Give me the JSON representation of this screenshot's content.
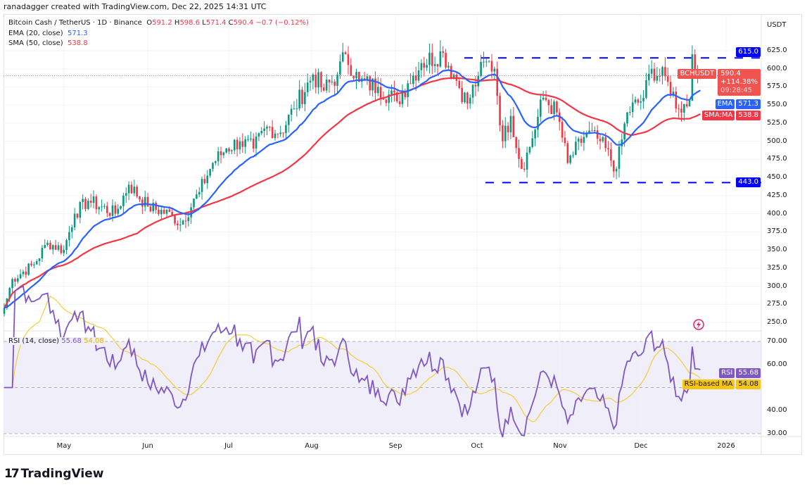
{
  "credit": "ranadagger created with TradingView.com, Dec 22, 2025 14:31 UTC",
  "legend": {
    "symbol": "Bitcoin Cash / TetherUS · 1D · Binance",
    "o_label": "O",
    "o": "591.2",
    "h_label": "H",
    "h": "598.6",
    "l_label": "L",
    "l": "571.4",
    "c_label": "C",
    "c": "590.4",
    "change": "−0.7 (−0.12%)",
    "ema_label": "EMA (20, close)",
    "ema": "571.3",
    "sma_label": "SMA (50, close)",
    "sma": "538.8",
    "rsi_label": "RSI (14, close)",
    "rsi": "55.68",
    "rsi_ma": "54.08"
  },
  "price_axis": {
    "currency": "USDT",
    "ticks": [
      "625.0",
      "600.0",
      "575.0",
      "550.0",
      "525.0",
      "500.0",
      "475.0",
      "450.0",
      "425.0",
      "400.0",
      "375.0",
      "350.0",
      "325.0",
      "300.0",
      "275.0",
      "250.0"
    ]
  },
  "rsi_axis": {
    "ticks": [
      "70.00",
      "60.00",
      "40.00",
      "30.00"
    ]
  },
  "tags": {
    "resistance": "615.0",
    "support": "443.0",
    "symbol": "BCHUSDT",
    "last": "590.4",
    "pct": "+114.38%",
    "countdown": "09:28:45",
    "ema_label": "EMA",
    "ema": "571.3",
    "sma_label": "SMA:MA",
    "sma": "538.8",
    "rsi_label": "RSI",
    "rsi": "55.68",
    "rsi_ma_label": "RSI-based MA",
    "rsi_ma": "54.08"
  },
  "time_axis": [
    "May",
    "Jun",
    "Jul",
    "Aug",
    "Sep",
    "Oct",
    "Nov",
    "Dec",
    "2026"
  ],
  "logo": "TradingView",
  "colors": {
    "up": "#089981",
    "down": "#f23645",
    "ema": "#2962ff",
    "sma": "#f23645",
    "rsi": "#7e57c2",
    "rsi_ma": "#f5c518",
    "level": "#0000ff"
  },
  "chart_data": {
    "type": "candlestick",
    "title": "Bitcoin Cash / TetherUS · 1D · Binance",
    "start": "2025-04-09",
    "end": "2025-12-22",
    "ylim": [
      240,
      640
    ],
    "horizontal_levels": [
      615,
      443
    ],
    "close_waypoints": [
      [
        "2025-04-09",
        270
      ],
      [
        "2025-04-12",
        310
      ],
      [
        "2025-04-20",
        330
      ],
      [
        "2025-04-25",
        360
      ],
      [
        "2025-05-01",
        350
      ],
      [
        "2025-05-05",
        400
      ],
      [
        "2025-05-10",
        418
      ],
      [
        "2025-05-20",
        400
      ],
      [
        "2025-05-25",
        440
      ],
      [
        "2025-06-01",
        410
      ],
      [
        "2025-06-10",
        398
      ],
      [
        "2025-06-13",
        385
      ],
      [
        "2025-06-20",
        430
      ],
      [
        "2025-06-25",
        470
      ],
      [
        "2025-06-30",
        490
      ],
      [
        "2025-07-05",
        500
      ],
      [
        "2025-07-10",
        490
      ],
      [
        "2025-07-15",
        520
      ],
      [
        "2025-07-20",
        512
      ],
      [
        "2025-07-25",
        545
      ],
      [
        "2025-08-01",
        592
      ],
      [
        "2025-08-05",
        570
      ],
      [
        "2025-08-10",
        592
      ],
      [
        "2025-08-13",
        620
      ],
      [
        "2025-08-18",
        582
      ],
      [
        "2025-08-25",
        575
      ],
      [
        "2025-09-01",
        555
      ],
      [
        "2025-09-05",
        580
      ],
      [
        "2025-09-10",
        608
      ],
      [
        "2025-09-18",
        622
      ],
      [
        "2025-09-22",
        592
      ],
      [
        "2025-09-27",
        552
      ],
      [
        "2025-10-01",
        590
      ],
      [
        "2025-10-04",
        610
      ],
      [
        "2025-10-07",
        600
      ],
      [
        "2025-10-10",
        500
      ],
      [
        "2025-10-13",
        535
      ],
      [
        "2025-10-17",
        462
      ],
      [
        "2025-10-20",
        492
      ],
      [
        "2025-10-25",
        560
      ],
      [
        "2025-10-30",
        540
      ],
      [
        "2025-11-03",
        470
      ],
      [
        "2025-11-10",
        512
      ],
      [
        "2025-11-15",
        500
      ],
      [
        "2025-11-21",
        462
      ],
      [
        "2025-11-25",
        540
      ],
      [
        "2025-12-01",
        560
      ],
      [
        "2025-12-04",
        600
      ],
      [
        "2025-12-10",
        582
      ],
      [
        "2025-12-14",
        545
      ],
      [
        "2025-12-18",
        556
      ],
      [
        "2025-12-19",
        620
      ],
      [
        "2025-12-21",
        591.2
      ],
      [
        "2025-12-22",
        590.4
      ]
    ]
  }
}
